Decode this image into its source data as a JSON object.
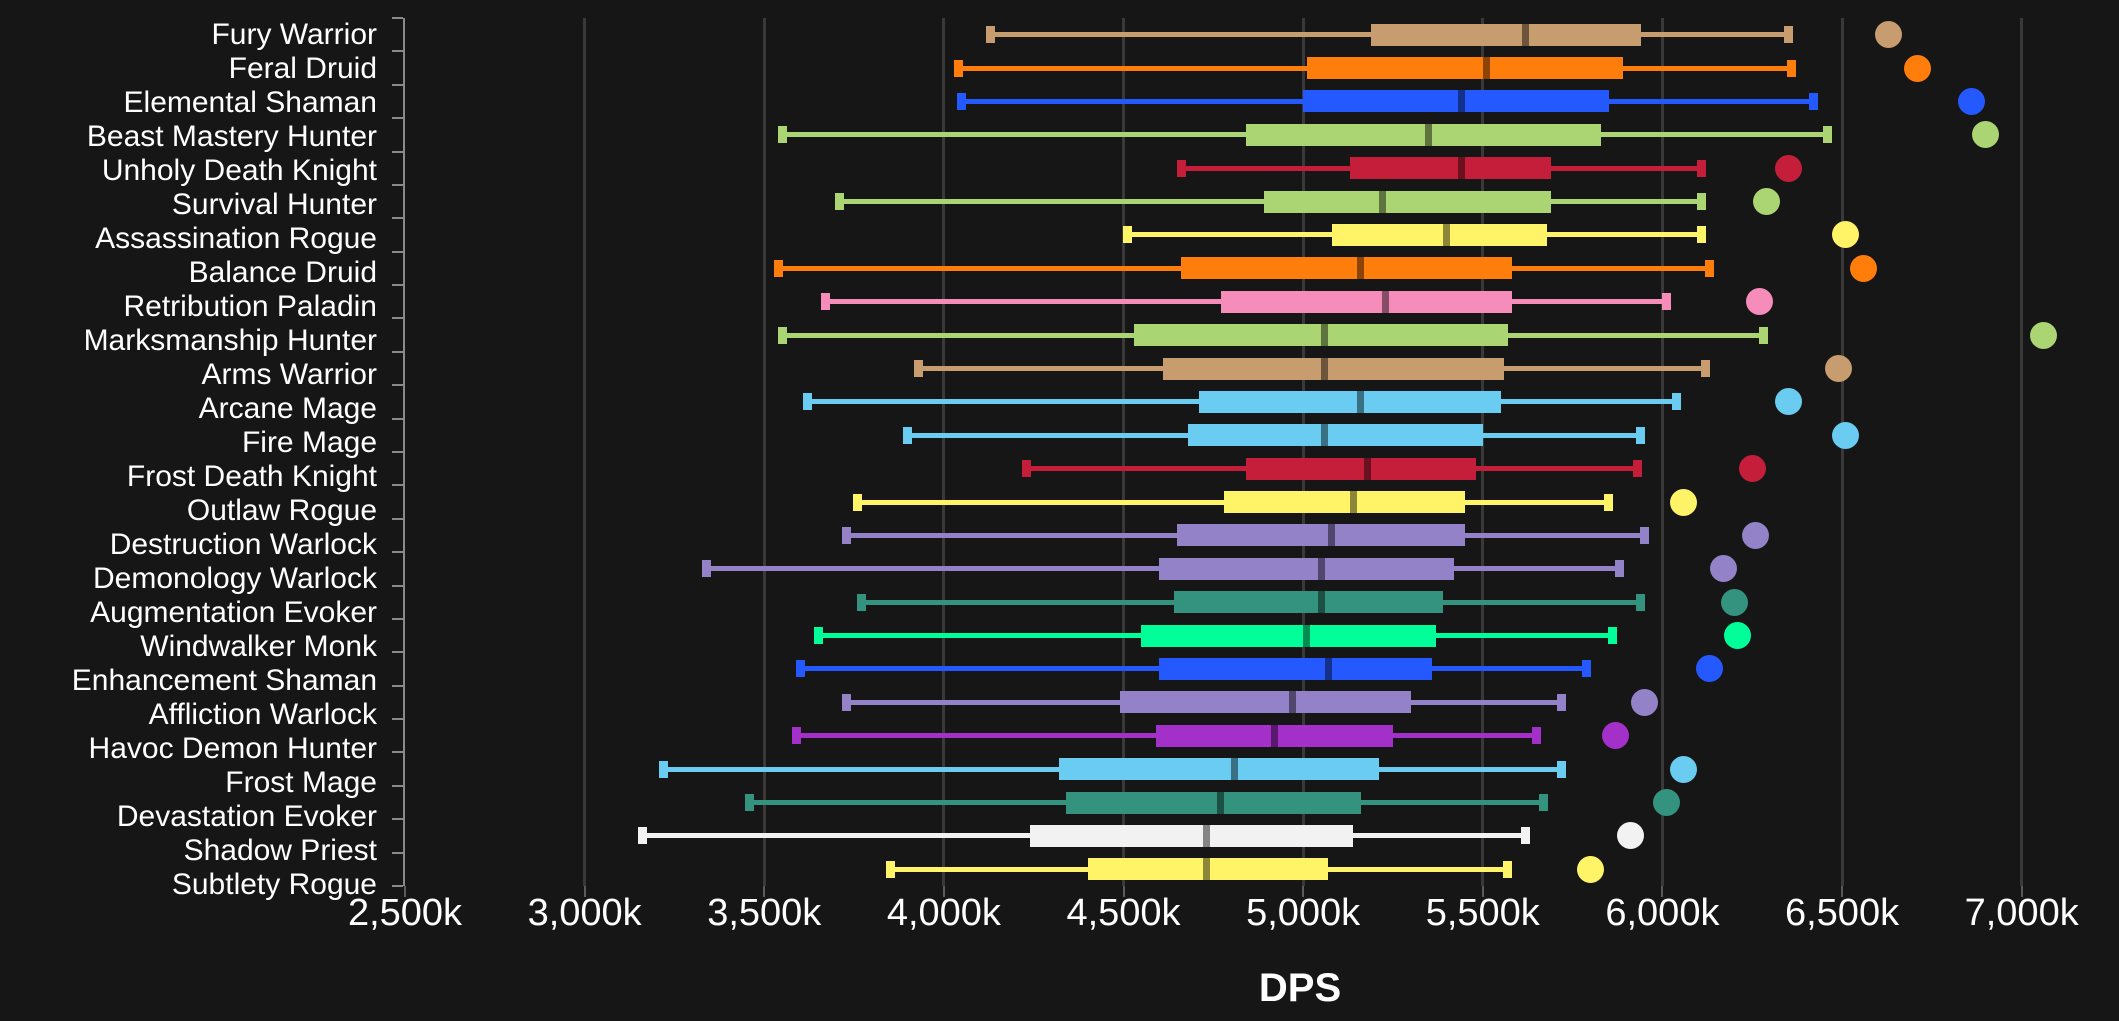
{
  "page": {
    "background": "#161616",
    "text_color": "#ffffff",
    "gridline_color": "#393939",
    "axis_color": "#8a8a8a"
  },
  "chart_data": {
    "type": "boxplot",
    "orientation": "horizontal",
    "title": "",
    "xlabel": "DPS",
    "ylabel": "",
    "grid": "vertical",
    "legend_position": "none",
    "units": "k = thousands of DPS",
    "x_min_k": 2500,
    "x_max_k": 7270,
    "x_tick_values_k": [
      2500,
      3000,
      3500,
      4000,
      4500,
      5000,
      5500,
      6000,
      6500,
      7000
    ],
    "x_tick_labels": [
      "2,500k",
      "3,000k",
      "3,500k",
      "4,000k",
      "4,500k",
      "5,000k",
      "5,500k",
      "6,000k",
      "6,500k",
      "7,000k"
    ],
    "gridline_values_k": [
      3000,
      3500,
      4000,
      4500,
      5000,
      5500,
      6000,
      6500,
      7000
    ],
    "median_tint": "rgba(0,0,0,0.45)",
    "series": [
      {
        "label": "Fury Warrior",
        "color": "#C79C6E",
        "low_k": 4130,
        "q1_k": 5190,
        "median_k": 5620,
        "q3_k": 5940,
        "high_k": 6350,
        "outlier_k": 6630
      },
      {
        "label": "Feral Druid",
        "color": "#FF7D0A",
        "low_k": 4040,
        "q1_k": 5010,
        "median_k": 5510,
        "q3_k": 5890,
        "high_k": 6360,
        "outlier_k": 6710
      },
      {
        "label": "Elemental Shaman",
        "color": "#2459FF",
        "low_k": 4050,
        "q1_k": 5000,
        "median_k": 5440,
        "q3_k": 5850,
        "high_k": 6420,
        "outlier_k": 6860
      },
      {
        "label": "Beast Mastery Hunter",
        "color": "#ABD473",
        "low_k": 3550,
        "q1_k": 4840,
        "median_k": 5350,
        "q3_k": 5830,
        "high_k": 6460,
        "outlier_k": 6900
      },
      {
        "label": "Unholy Death Knight",
        "color": "#C41E3A",
        "low_k": 4660,
        "q1_k": 5130,
        "median_k": 5440,
        "q3_k": 5690,
        "high_k": 6110,
        "outlier_k": 6350
      },
      {
        "label": "Survival Hunter",
        "color": "#ABD473",
        "low_k": 3710,
        "q1_k": 4890,
        "median_k": 5220,
        "q3_k": 5690,
        "high_k": 6110,
        "outlier_k": 6290
      },
      {
        "label": "Assassination Rogue",
        "color": "#FFF468",
        "low_k": 4510,
        "q1_k": 5080,
        "median_k": 5400,
        "q3_k": 5680,
        "high_k": 6110,
        "outlier_k": 6510
      },
      {
        "label": "Balance Druid",
        "color": "#FF7D0A",
        "low_k": 3540,
        "q1_k": 4660,
        "median_k": 5160,
        "q3_k": 5580,
        "high_k": 6130,
        "outlier_k": 6560
      },
      {
        "label": "Retribution Paladin",
        "color": "#F58CBA",
        "low_k": 3670,
        "q1_k": 4770,
        "median_k": 5230,
        "q3_k": 5580,
        "high_k": 6010,
        "outlier_k": 6270
      },
      {
        "label": "Marksmanship Hunter",
        "color": "#ABD473",
        "low_k": 3550,
        "q1_k": 4530,
        "median_k": 5060,
        "q3_k": 5570,
        "high_k": 6280,
        "outlier_k": 7060
      },
      {
        "label": "Arms Warrior",
        "color": "#C79C6E",
        "low_k": 3930,
        "q1_k": 4610,
        "median_k": 5060,
        "q3_k": 5560,
        "high_k": 6120,
        "outlier_k": 6490
      },
      {
        "label": "Arcane Mage",
        "color": "#69CCF0",
        "low_k": 3620,
        "q1_k": 4710,
        "median_k": 5160,
        "q3_k": 5550,
        "high_k": 6040,
        "outlier_k": 6350
      },
      {
        "label": "Fire Mage",
        "color": "#69CCF0",
        "low_k": 3900,
        "q1_k": 4680,
        "median_k": 5060,
        "q3_k": 5500,
        "high_k": 5940,
        "outlier_k": 6510
      },
      {
        "label": "Frost Death Knight",
        "color": "#C41E3A",
        "low_k": 4230,
        "q1_k": 4840,
        "median_k": 5180,
        "q3_k": 5480,
        "high_k": 5930,
        "outlier_k": 6250
      },
      {
        "label": "Outlaw Rogue",
        "color": "#FFF468",
        "low_k": 3760,
        "q1_k": 4780,
        "median_k": 5140,
        "q3_k": 5450,
        "high_k": 5850,
        "outlier_k": 6060
      },
      {
        "label": "Destruction Warlock",
        "color": "#9482C9",
        "low_k": 3730,
        "q1_k": 4650,
        "median_k": 5080,
        "q3_k": 5450,
        "high_k": 5950,
        "outlier_k": 6260
      },
      {
        "label": "Demonology Warlock",
        "color": "#9482C9",
        "low_k": 3340,
        "q1_k": 4600,
        "median_k": 5050,
        "q3_k": 5420,
        "high_k": 5880,
        "outlier_k": 6170
      },
      {
        "label": "Augmentation Evoker",
        "color": "#33937F",
        "low_k": 3770,
        "q1_k": 4640,
        "median_k": 5050,
        "q3_k": 5390,
        "high_k": 5940,
        "outlier_k": 6200
      },
      {
        "label": "Windwalker Monk",
        "color": "#00FF98",
        "low_k": 3650,
        "q1_k": 4550,
        "median_k": 5010,
        "q3_k": 5370,
        "high_k": 5860,
        "outlier_k": 6210
      },
      {
        "label": "Enhancement Shaman",
        "color": "#2459FF",
        "low_k": 3600,
        "q1_k": 4600,
        "median_k": 5070,
        "q3_k": 5360,
        "high_k": 5790,
        "outlier_k": 6130
      },
      {
        "label": "Affliction Warlock",
        "color": "#9482C9",
        "low_k": 3730,
        "q1_k": 4490,
        "median_k": 4970,
        "q3_k": 5300,
        "high_k": 5720,
        "outlier_k": 5950
      },
      {
        "label": "Havoc Demon Hunter",
        "color": "#A330C9",
        "low_k": 3590,
        "q1_k": 4590,
        "median_k": 4920,
        "q3_k": 5250,
        "high_k": 5650,
        "outlier_k": 5870
      },
      {
        "label": "Frost Mage",
        "color": "#69CCF0",
        "low_k": 3220,
        "q1_k": 4320,
        "median_k": 4810,
        "q3_k": 5210,
        "high_k": 5720,
        "outlier_k": 6060
      },
      {
        "label": "Devastation Evoker",
        "color": "#33937F",
        "low_k": 3460,
        "q1_k": 4340,
        "median_k": 4770,
        "q3_k": 5160,
        "high_k": 5670,
        "outlier_k": 6010
      },
      {
        "label": "Shadow Priest",
        "color": "#F2F2F2",
        "low_k": 3160,
        "q1_k": 4240,
        "median_k": 4730,
        "q3_k": 5140,
        "high_k": 5620,
        "outlier_k": 5910
      },
      {
        "label": "Subtlety Rogue",
        "color": "#FFF468",
        "low_k": 3850,
        "q1_k": 4400,
        "median_k": 4730,
        "q3_k": 5070,
        "high_k": 5570,
        "outlier_k": 5800
      }
    ]
  }
}
